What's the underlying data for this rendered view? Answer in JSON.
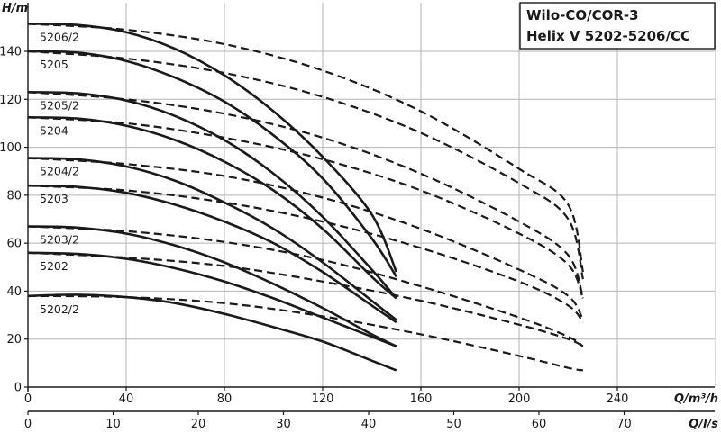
{
  "chart_data": {
    "type": "line",
    "title_lines": [
      "Wilo-CO/COR-3",
      "Helix V 5202-5206/CC"
    ],
    "ylabel": "H/m",
    "xlabel": "Q/m³/h",
    "xlabel2": "Q/l/s",
    "ylim": [
      0,
      155
    ],
    "xlim": [
      0,
      280
    ],
    "xlim2": [
      0,
      77.8
    ],
    "y_ticks": [
      "0",
      "20",
      "40",
      "60",
      "80",
      "100",
      "120",
      "140"
    ],
    "x_ticks": [
      "0",
      "40",
      "80",
      "120",
      "160",
      "200",
      "240"
    ],
    "x2_ticks": [
      "0",
      "10",
      "20",
      "30",
      "40",
      "50",
      "60",
      "70"
    ],
    "grid": true,
    "line_color": "#1a1a1a",
    "series": [
      {
        "name": "5206/2",
        "shutoff": 151.5,
        "solid": [
          [
            0,
            151.5
          ],
          [
            20,
            151
          ],
          [
            40,
            148
          ],
          [
            60,
            141
          ],
          [
            80,
            130
          ],
          [
            100,
            115
          ],
          [
            120,
            96
          ],
          [
            140,
            72
          ],
          [
            150,
            48
          ]
        ],
        "dashed": [
          [
            0,
            151.5
          ],
          [
            40,
            149
          ],
          [
            80,
            143
          ],
          [
            120,
            132
          ],
          [
            160,
            115
          ],
          [
            200,
            91
          ],
          [
            220,
            76
          ],
          [
            226,
            48
          ]
        ]
      },
      {
        "name": "5205",
        "shutoff": 140,
        "solid": [
          [
            0,
            140
          ],
          [
            20,
            139.5
          ],
          [
            40,
            136
          ],
          [
            60,
            129
          ],
          [
            80,
            119
          ],
          [
            100,
            105
          ],
          [
            120,
            87
          ],
          [
            140,
            62
          ],
          [
            150,
            46
          ]
        ],
        "dashed": [
          [
            0,
            140
          ],
          [
            40,
            137
          ],
          [
            80,
            131
          ],
          [
            120,
            121
          ],
          [
            160,
            106
          ],
          [
            200,
            85
          ],
          [
            220,
            70
          ],
          [
            226,
            45
          ]
        ]
      },
      {
        "name": "5205/2",
        "shutoff": 123,
        "solid": [
          [
            0,
            123
          ],
          [
            20,
            122.5
          ],
          [
            40,
            119.5
          ],
          [
            60,
            113
          ],
          [
            80,
            103
          ],
          [
            100,
            89
          ],
          [
            120,
            71
          ],
          [
            140,
            49
          ],
          [
            150,
            37
          ]
        ],
        "dashed": [
          [
            0,
            123
          ],
          [
            40,
            120
          ],
          [
            80,
            114
          ],
          [
            120,
            104
          ],
          [
            160,
            89
          ],
          [
            200,
            69
          ],
          [
            220,
            55
          ],
          [
            226,
            37
          ]
        ]
      },
      {
        "name": "5204",
        "shutoff": 112.5,
        "solid": [
          [
            0,
            112.5
          ],
          [
            20,
            112
          ],
          [
            40,
            109
          ],
          [
            60,
            103
          ],
          [
            80,
            94
          ],
          [
            100,
            82
          ],
          [
            120,
            66
          ],
          [
            140,
            46
          ],
          [
            150,
            37
          ]
        ],
        "dashed": [
          [
            0,
            112.5
          ],
          [
            40,
            110
          ],
          [
            80,
            104
          ],
          [
            120,
            95
          ],
          [
            160,
            82
          ],
          [
            200,
            64
          ],
          [
            220,
            51
          ],
          [
            226,
            37
          ]
        ]
      },
      {
        "name": "5204/2",
        "shutoff": 95.5,
        "solid": [
          [
            0,
            95.5
          ],
          [
            20,
            95
          ],
          [
            40,
            92
          ],
          [
            60,
            86
          ],
          [
            80,
            77
          ],
          [
            100,
            66
          ],
          [
            120,
            52
          ],
          [
            140,
            36
          ],
          [
            150,
            28
          ]
        ],
        "dashed": [
          [
            0,
            95.5
          ],
          [
            40,
            93
          ],
          [
            80,
            88
          ],
          [
            120,
            79
          ],
          [
            160,
            66
          ],
          [
            200,
            49
          ],
          [
            220,
            38
          ],
          [
            226,
            28
          ]
        ]
      },
      {
        "name": "5203",
        "shutoff": 84,
        "solid": [
          [
            0,
            84
          ],
          [
            20,
            83.5
          ],
          [
            40,
            81
          ],
          [
            60,
            76
          ],
          [
            80,
            69
          ],
          [
            100,
            60
          ],
          [
            120,
            48
          ],
          [
            140,
            34
          ],
          [
            150,
            27
          ]
        ],
        "dashed": [
          [
            0,
            84
          ],
          [
            40,
            82
          ],
          [
            80,
            77
          ],
          [
            120,
            69
          ],
          [
            160,
            58
          ],
          [
            200,
            44
          ],
          [
            220,
            34
          ],
          [
            226,
            27
          ]
        ]
      },
      {
        "name": "5203/2",
        "shutoff": 67,
        "solid": [
          [
            0,
            67
          ],
          [
            20,
            66.5
          ],
          [
            40,
            64
          ],
          [
            60,
            59
          ],
          [
            80,
            52
          ],
          [
            100,
            43
          ],
          [
            120,
            33
          ],
          [
            140,
            22
          ],
          [
            150,
            17
          ]
        ],
        "dashed": [
          [
            0,
            67
          ],
          [
            40,
            65
          ],
          [
            80,
            60.5
          ],
          [
            120,
            53
          ],
          [
            160,
            42
          ],
          [
            200,
            29
          ],
          [
            220,
            21
          ],
          [
            226,
            17
          ]
        ]
      },
      {
        "name": "5202",
        "shutoff": 56,
        "solid": [
          [
            0,
            56
          ],
          [
            20,
            55.5
          ],
          [
            40,
            53.5
          ],
          [
            60,
            49.5
          ],
          [
            80,
            44
          ],
          [
            100,
            37
          ],
          [
            120,
            29
          ],
          [
            140,
            21
          ],
          [
            150,
            17
          ]
        ],
        "dashed": [
          [
            0,
            56
          ],
          [
            40,
            54
          ],
          [
            80,
            50.5
          ],
          [
            120,
            44
          ],
          [
            160,
            36
          ],
          [
            200,
            26
          ],
          [
            220,
            20
          ],
          [
            226,
            17
          ]
        ]
      },
      {
        "name": "5202/2",
        "shutoff": 38,
        "solid": [
          [
            0,
            38
          ],
          [
            20,
            38.5
          ],
          [
            40,
            37.5
          ],
          [
            60,
            35
          ],
          [
            80,
            30.5
          ],
          [
            100,
            25
          ],
          [
            120,
            19
          ],
          [
            140,
            11
          ],
          [
            150,
            7
          ]
        ],
        "dashed": [
          [
            0,
            38
          ],
          [
            40,
            37.5
          ],
          [
            80,
            35
          ],
          [
            120,
            29.5
          ],
          [
            160,
            22
          ],
          [
            200,
            13
          ],
          [
            220,
            8
          ],
          [
            226,
            7
          ]
        ]
      }
    ]
  }
}
